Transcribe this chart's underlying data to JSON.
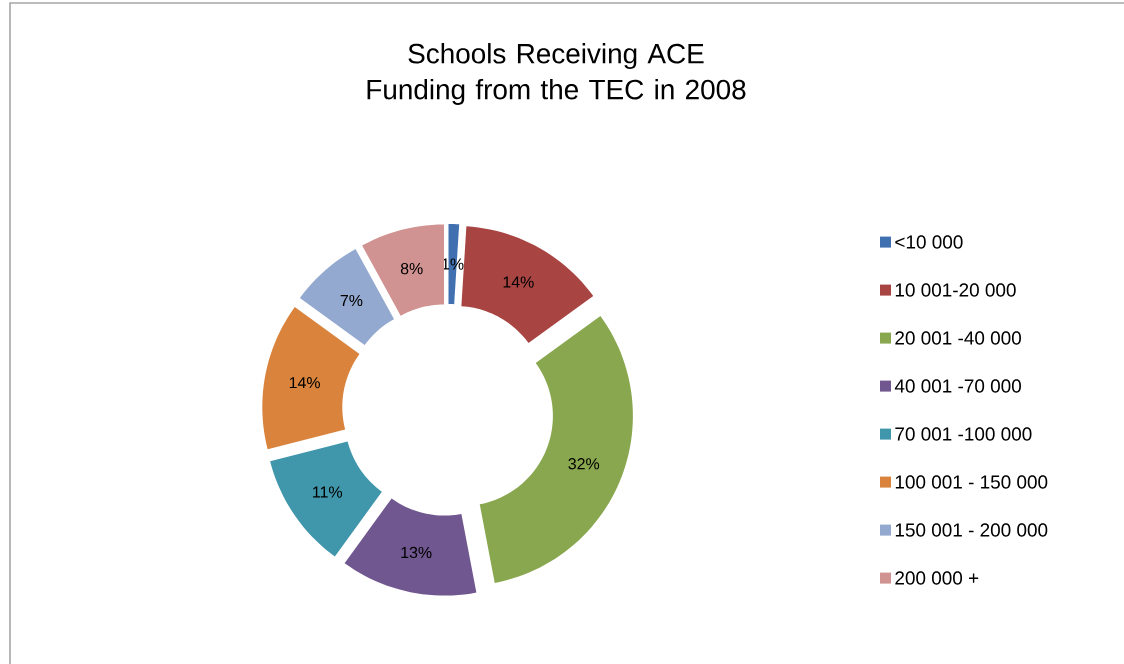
{
  "chart_data": {
    "type": "donut",
    "title": "Schools Receiving ACE Funding from the TEC in 2008",
    "categories": [
      "<10 000",
      "10 001-20 000",
      "20 001 -40 000",
      "40 001 -70 000",
      "70 001 -100 000",
      "100 001 - 150 000",
      "150 001 - 200 000",
      "200 000 +"
    ],
    "values": [
      1,
      14,
      32,
      13,
      11,
      14,
      7,
      8
    ],
    "value_labels": [
      "1%",
      "14%",
      "32%",
      "13%",
      "11%",
      "14%",
      "7%",
      "8%"
    ],
    "colors": [
      "#4170b0",
      "#a84442",
      "#89a74e",
      "#70578f",
      "#4096ab",
      "#d9833c",
      "#93a9cf",
      "#d19392"
    ],
    "legend": "right"
  }
}
